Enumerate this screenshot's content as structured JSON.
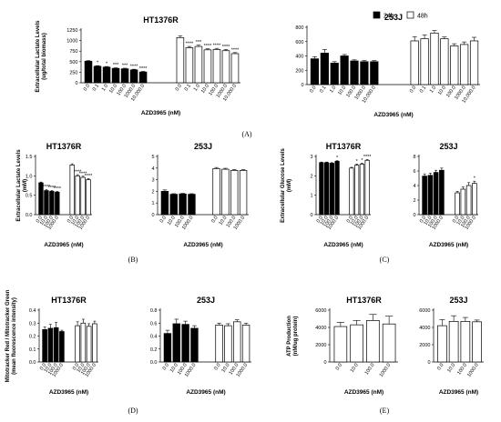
{
  "panel_labels": [
    "(A)",
    "(B)",
    "(C)",
    "(D)",
    "(E)"
  ],
  "legend": {
    "entries": [
      "24h",
      "48h"
    ],
    "colors": {
      "24h": "#000000",
      "48h": "#ffffff"
    }
  },
  "chart_data": [
    {
      "panel": "(A)",
      "type": "bar",
      "title": "HT1376R",
      "ylabel": "Extracellular Lactate Levels (ug/total biomass)",
      "xlabel": "AZD3965 (nM)",
      "ylim": [
        0,
        1250
      ],
      "yticks": [
        0,
        250,
        500,
        750,
        1000,
        1250
      ],
      "categories": [
        "0.0",
        "0.1",
        "1.0",
        "10.0",
        "100.0",
        "1000.0",
        "10,000.0"
      ],
      "series": [
        {
          "name": "24h",
          "color": "#000000",
          "values": [
            510,
            390,
            370,
            340,
            330,
            305,
            255
          ],
          "errors": [
            15,
            15,
            15,
            15,
            15,
            15,
            15
          ],
          "significance": [
            "",
            "*",
            "*",
            "***",
            "***",
            "****",
            "****"
          ]
        },
        {
          "name": "48h",
          "color": "#ffffff",
          "values": [
            1070,
            830,
            860,
            780,
            790,
            760,
            690
          ],
          "errors": [
            40,
            30,
            30,
            25,
            25,
            30,
            25
          ],
          "significance": [
            "",
            "****",
            "***",
            "****",
            "****",
            "****",
            "****"
          ]
        }
      ]
    },
    {
      "panel": "(A)",
      "type": "bar",
      "title": "253J",
      "ylabel": "",
      "xlabel": "AZD3965 (nM)",
      "ylim": [
        0,
        800
      ],
      "yticks": [
        0,
        200,
        400,
        600,
        800
      ],
      "categories": [
        "0.0",
        "0.1",
        "1.0",
        "10.0",
        "100.0",
        "1000.0",
        "10,000.0"
      ],
      "series": [
        {
          "name": "24h",
          "color": "#000000",
          "values": [
            360,
            440,
            300,
            400,
            330,
            320,
            320
          ],
          "errors": [
            30,
            50,
            20,
            20,
            15,
            15,
            15
          ],
          "significance": [
            "",
            "",
            "",
            "",
            "",
            "",
            ""
          ]
        },
        {
          "name": "48h",
          "color": "#ffffff",
          "values": [
            610,
            640,
            720,
            640,
            540,
            560,
            610
          ],
          "errors": [
            60,
            55,
            35,
            25,
            30,
            35,
            50
          ],
          "significance": [
            "",
            "",
            "",
            "",
            "",
            "",
            ""
          ]
        }
      ]
    },
    {
      "panel": "(B)",
      "type": "bar",
      "title": "HT1376R",
      "ylabel": "Extracellular Lactate Levels (mM)",
      "xlabel": "AZD3965 (nM)",
      "ylim": [
        0,
        1.5
      ],
      "yticks": [
        0,
        0.5,
        1.0,
        1.5
      ],
      "categories": [
        "0.0",
        "10.0",
        "100.0",
        "1000.0"
      ],
      "series": [
        {
          "name": "24h",
          "color": "#000000",
          "values": [
            0.82,
            0.62,
            0.6,
            0.58
          ],
          "errors": [
            0.02,
            0.02,
            0.02,
            0.02
          ],
          "significance": [
            "",
            "****",
            "****",
            "****"
          ]
        },
        {
          "name": "48h",
          "color": "#ffffff",
          "values": [
            1.28,
            1.0,
            0.96,
            0.9
          ],
          "errors": [
            0.03,
            0.03,
            0.03,
            0.03
          ],
          "significance": [
            "",
            "****",
            "****",
            "****"
          ]
        }
      ]
    },
    {
      "panel": "(B)",
      "type": "bar",
      "title": "253J",
      "ylabel": "",
      "xlabel": "AZD3965 (nM)",
      "ylim": [
        0,
        5
      ],
      "yticks": [
        0,
        1,
        2,
        3,
        4,
        5
      ],
      "categories": [
        "0.0",
        "10.0",
        "100.0",
        "1000.0"
      ],
      "series": [
        {
          "name": "24h",
          "color": "#000000",
          "values": [
            2.0,
            1.75,
            1.78,
            1.75
          ],
          "errors": [
            0.12,
            0.05,
            0.05,
            0.05
          ],
          "significance": [
            "",
            "",
            "",
            ""
          ]
        },
        {
          "name": "48h",
          "color": "#ffffff",
          "values": [
            3.95,
            3.9,
            3.8,
            3.8
          ],
          "errors": [
            0.1,
            0.08,
            0.08,
            0.08
          ],
          "significance": [
            "",
            "",
            "",
            ""
          ]
        }
      ]
    },
    {
      "panel": "(C)",
      "type": "bar",
      "title": "HT1376R",
      "ylabel": "Extracellular Glucose Levels (mM)",
      "xlabel": "AZD3965 (nM)",
      "ylim": [
        0,
        3
      ],
      "yticks": [
        0,
        1,
        2,
        3
      ],
      "categories": [
        "0.0",
        "10.0",
        "100.0",
        "1000.0"
      ],
      "series": [
        {
          "name": "24h",
          "color": "#000000",
          "values": [
            2.68,
            2.68,
            2.65,
            2.75
          ],
          "errors": [
            0.03,
            0.03,
            0.03,
            0.03
          ],
          "significance": [
            "",
            "",
            "",
            "*"
          ]
        },
        {
          "name": "48h",
          "color": "#ffffff",
          "values": [
            2.4,
            2.55,
            2.6,
            2.8
          ],
          "errors": [
            0.04,
            0.05,
            0.05,
            0.04
          ],
          "significance": [
            "",
            "*",
            "*",
            "****"
          ]
        }
      ]
    },
    {
      "panel": "(C)",
      "type": "bar",
      "title": "253J",
      "ylabel": "",
      "xlabel": "AZD3965 (nM)",
      "ylim": [
        0,
        8
      ],
      "yticks": [
        0,
        2,
        4,
        6,
        8
      ],
      "categories": [
        "0.0",
        "10.0",
        "100.0",
        "1000.0"
      ],
      "series": [
        {
          "name": "24h",
          "color": "#000000",
          "values": [
            5.3,
            5.4,
            5.8,
            6.1
          ],
          "errors": [
            0.3,
            0.3,
            0.3,
            0.3
          ],
          "significance": [
            "",
            "",
            "",
            ""
          ]
        },
        {
          "name": "48h",
          "color": "#ffffff",
          "values": [
            3.0,
            3.5,
            4.0,
            4.3
          ],
          "errors": [
            0.2,
            0.3,
            0.4,
            0.3
          ],
          "significance": [
            "",
            "",
            "",
            "*"
          ]
        }
      ]
    },
    {
      "panel": "(D)",
      "type": "bar",
      "title": "HT1376R",
      "ylabel": "Mitotracker Red / Mitotracker Green (mean fluorescence intensity)",
      "xlabel": "AZD3965 (nM)",
      "ylim": [
        0,
        0.4
      ],
      "yticks": [
        0,
        0.1,
        0.2,
        0.3,
        0.4
      ],
      "categories": [
        "0.0",
        "10.0",
        "100.0",
        "1000.0"
      ],
      "series": [
        {
          "name": "24h",
          "color": "#000000",
          "values": [
            0.25,
            0.26,
            0.265,
            0.235
          ],
          "errors": [
            0.02,
            0.03,
            0.04,
            0.01
          ],
          "significance": [
            "",
            "",
            "",
            ""
          ]
        },
        {
          "name": "48h",
          "color": "#ffffff",
          "values": [
            0.28,
            0.3,
            0.275,
            0.295
          ],
          "errors": [
            0.03,
            0.03,
            0.02,
            0.02
          ],
          "significance": [
            "",
            "",
            "",
            ""
          ]
        }
      ]
    },
    {
      "panel": "(D)",
      "type": "bar",
      "title": "253J",
      "ylabel": "",
      "xlabel": "AZD3965 (nM)",
      "ylim": [
        0,
        0.8
      ],
      "yticks": [
        0,
        0.2,
        0.4,
        0.6,
        0.8
      ],
      "categories": [
        "0.0",
        "10.0",
        "100.0",
        "1000.0"
      ],
      "series": [
        {
          "name": "24h",
          "color": "#000000",
          "values": [
            0.44,
            0.59,
            0.58,
            0.52
          ],
          "errors": [
            0.05,
            0.07,
            0.05,
            0.04
          ],
          "significance": [
            "",
            "",
            "",
            ""
          ]
        },
        {
          "name": "48h",
          "color": "#ffffff",
          "values": [
            0.57,
            0.56,
            0.62,
            0.57
          ],
          "errors": [
            0.03,
            0.03,
            0.03,
            0.03
          ],
          "significance": [
            "",
            "",
            "",
            ""
          ]
        }
      ]
    },
    {
      "panel": "(E)",
      "type": "bar",
      "title": "HT1376R",
      "ylabel": "ATP Production (nM/ug protein)",
      "xlabel": "AZD3965 (nM)",
      "ylim": [
        0,
        6000
      ],
      "yticks": [
        0,
        2000,
        4000,
        6000
      ],
      "categories": [
        "0.0",
        "10.0",
        "100.0",
        "1000.0"
      ],
      "series": [
        {
          "name": "",
          "color": "#ffffff",
          "values": [
            4100,
            4300,
            4800,
            4400
          ],
          "errors": [
            500,
            500,
            700,
            900
          ],
          "significance": [
            "",
            "",
            "",
            ""
          ]
        }
      ]
    },
    {
      "panel": "(E)",
      "type": "bar",
      "title": "253J",
      "ylabel": "",
      "xlabel": "AZD3965 (nM)",
      "ylim": [
        0,
        6000
      ],
      "yticks": [
        0,
        2000,
        4000,
        6000
      ],
      "categories": [
        "0.0",
        "10.0",
        "100.0",
        "1000.0"
      ],
      "series": [
        {
          "name": "",
          "color": "#ffffff",
          "values": [
            4200,
            4700,
            4700,
            4650
          ],
          "errors": [
            700,
            650,
            450,
            200
          ],
          "significance": [
            "",
            "",
            "",
            ""
          ]
        }
      ]
    }
  ]
}
